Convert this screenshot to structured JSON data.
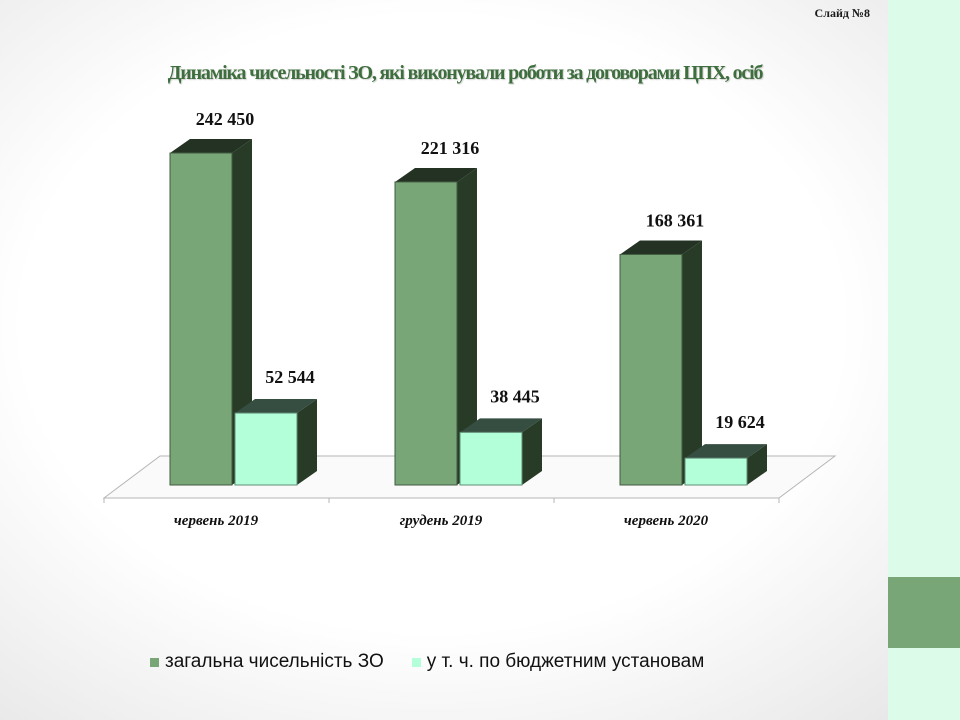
{
  "slide_label": "Слайд №8",
  "chart_data": {
    "type": "bar",
    "title": "Динаміка чисельності ЗО, які виконували роботи за договорами ЦПХ, осіб",
    "categories": [
      "червень 2019",
      "грудень 2019",
      "червень 2020"
    ],
    "series": [
      {
        "name": "загальна чисельність ЗО",
        "values": [
          242450,
          221316,
          168361
        ],
        "labels": [
          "242 450",
          "221 316",
          "168 361"
        ],
        "color": "#78a677"
      },
      {
        "name": "у т. ч. по  бюджетним установам",
        "values": [
          52544,
          38445,
          19624
        ],
        "labels": [
          "52 544",
          "38 445",
          "19 624"
        ],
        "color": "#b3ffd9"
      }
    ],
    "ylim": [
      0,
      242450
    ],
    "legend": "bottom",
    "grid": false
  },
  "colors": {
    "accent_dark": "#273b27",
    "side_panel": "#dcfbe8",
    "side_block": "#78a677",
    "title": "#3e6e3e"
  }
}
